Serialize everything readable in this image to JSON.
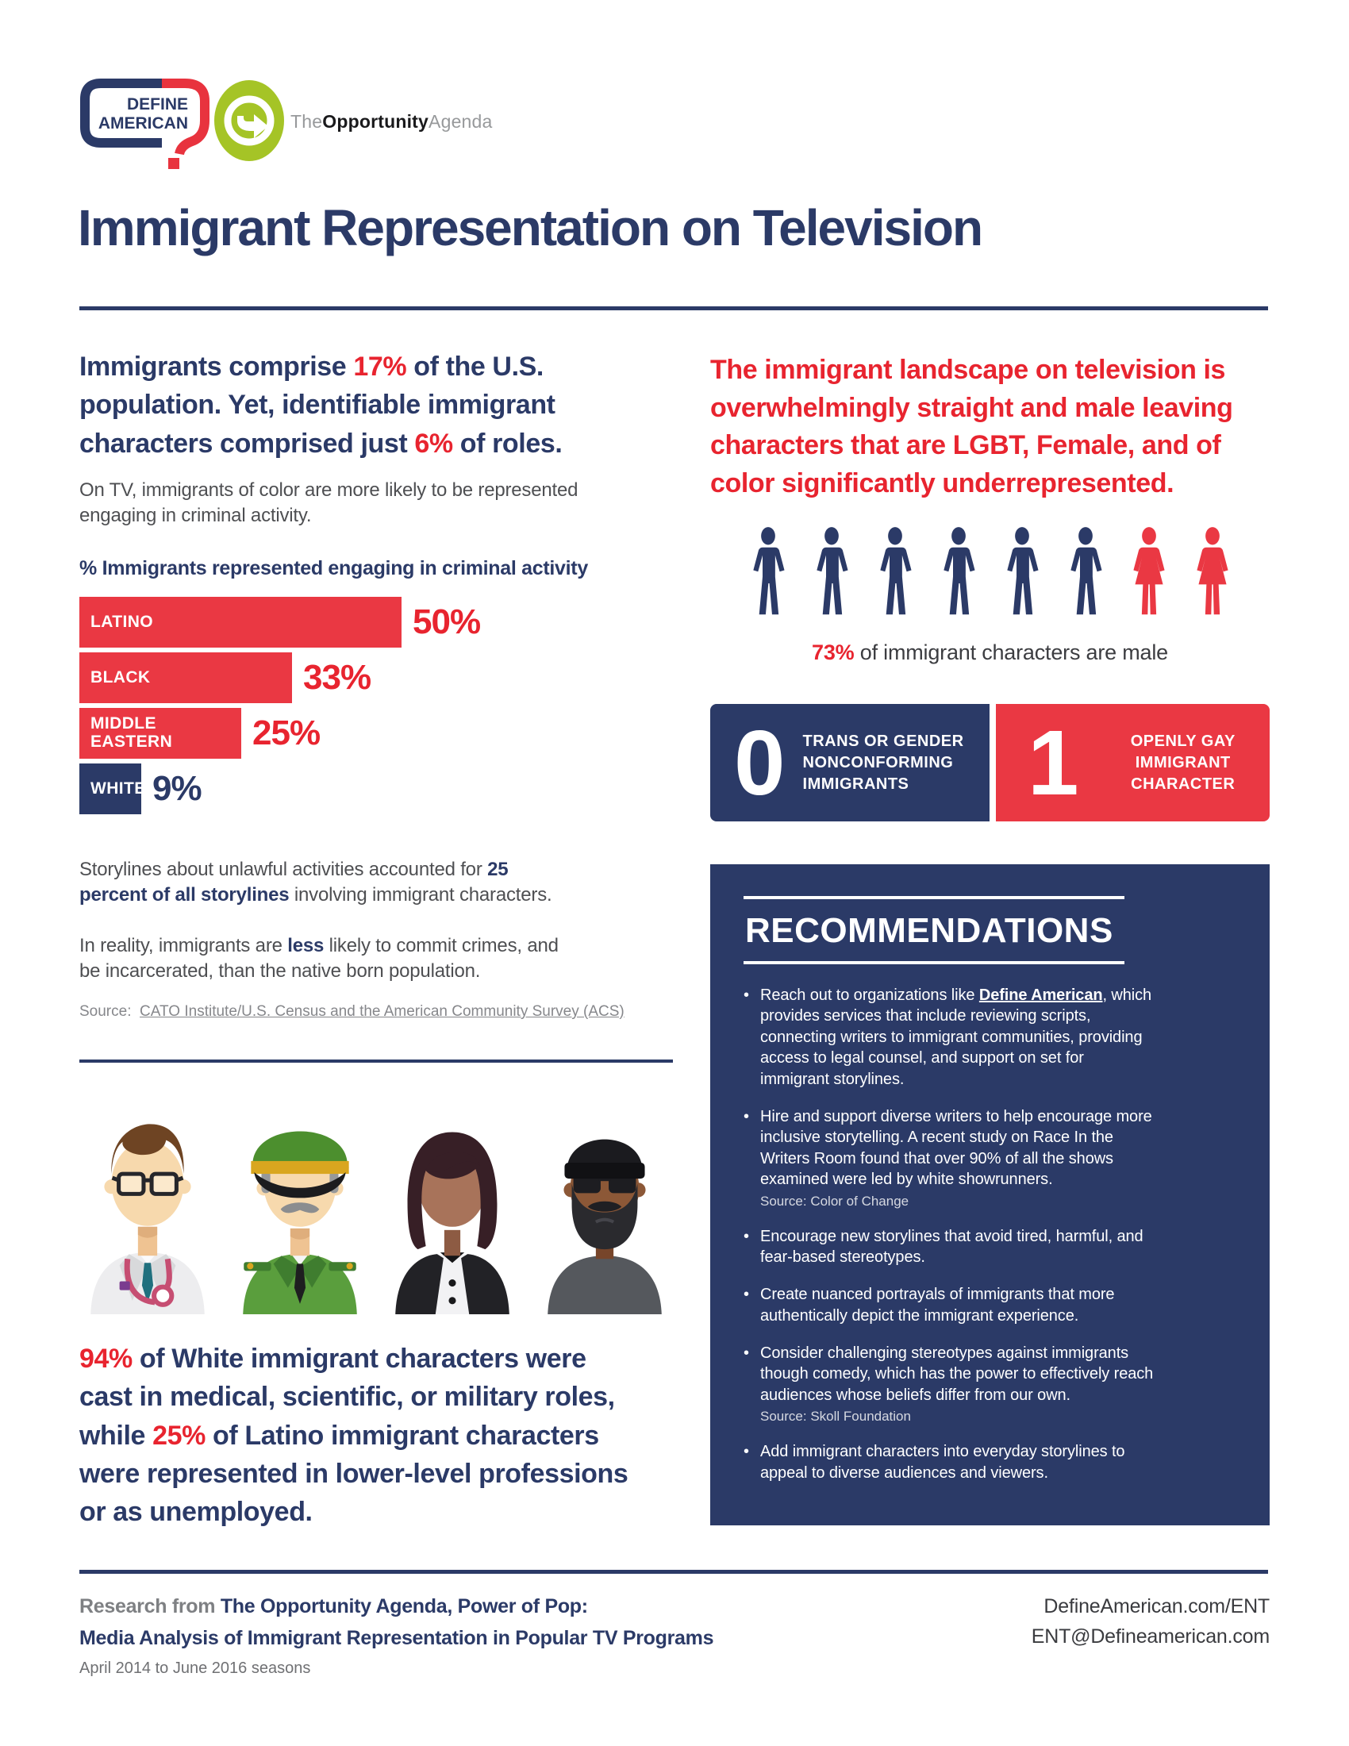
{
  "colors": {
    "navy": "#2b3a67",
    "red_fill": "#ea3843",
    "red_text": "#e8242f",
    "body_gray": "#4e4f52",
    "source_gray": "#86878b",
    "logo_green": "#a5c426"
  },
  "header": {
    "define_american": {
      "line1": "DEFINE",
      "line2": "AMERICAN"
    },
    "opportunity_agenda": {
      "the": "The",
      "opportunity": "Opportunity",
      "agenda": "Agenda"
    }
  },
  "title": "Immigrant Representation on Television",
  "left": {
    "headline": [
      {
        "t": "Immigrants comprise "
      },
      {
        "t": "17%",
        "c": "red"
      },
      {
        "t": " of the U.S.\npopulation. Yet, identifiable immigrant\ncharacters comprised just "
      },
      {
        "t": "6%",
        "c": "red"
      },
      {
        "t": " of roles."
      }
    ],
    "intro": "On TV, immigrants of color are more likely to be represented\nengaging in criminal activity.",
    "storylines": [
      {
        "t": "Storylines about unlawful activities accounted for "
      },
      {
        "t": "25\npercent of all storylines",
        "c": "nb"
      },
      {
        "t": " involving immigrant characters."
      }
    ],
    "reality": [
      {
        "t": "In reality, immigrants are "
      },
      {
        "t": "less",
        "c": "nb"
      },
      {
        "t": " likely to commit crimes, and\nbe incarcerated, than the native born population."
      }
    ],
    "source_label": "Source:",
    "source_link": "CATO Institute/U.S. Census and the American Community Survey (ACS)",
    "professions": [
      {
        "t": "94%",
        "c": "red"
      },
      {
        "t": " of White immigrant characters were\ncast in medical, scientific, or military roles,\nwhile "
      },
      {
        "t": "25%",
        "c": "red"
      },
      {
        "t": " of Latino immigrant characters\nwere represented in lower-level professions\nor as unemployed."
      }
    ],
    "avatar_names": [
      "doctor-avatar",
      "military-officer-avatar",
      "waitress-avatar",
      "bearded-man-avatar"
    ]
  },
  "chart_data": {
    "type": "bar",
    "orientation": "horizontal",
    "title": "% Immigrants represented engaging in criminal activity",
    "categories": [
      "LATINO",
      "BLACK",
      "MIDDLE EASTERN",
      "WHITE"
    ],
    "values": [
      50,
      33,
      25,
      9
    ],
    "value_labels": [
      "50%",
      "33%",
      "25%",
      "9%"
    ],
    "bar_colors": [
      "#ea3843",
      "#ea3843",
      "#ea3843",
      "#2b3a67"
    ],
    "xlim": [
      0,
      100
    ],
    "axis_shown": false,
    "legend": "none"
  },
  "right": {
    "headline": "The immigrant landscape on television is\noverwhelmingly straight and male leaving\ncharacters that are LGBT, Female, and of\ncolor significantly underrepresented.",
    "pictogram": {
      "male_count": 6,
      "female_count": 2
    },
    "caption": [
      {
        "t": "73%",
        "c": "rb"
      },
      {
        "t": " of immigrant characters are male"
      }
    ],
    "stat_boxes": [
      {
        "value": "0",
        "label": "TRANS OR GENDER\nNONCONFORMING\nIMMIGRANTS"
      },
      {
        "value": "1",
        "label": "OPENLY GAY\nIMMIGRANT\nCHARACTER"
      }
    ],
    "recommendations": {
      "title": "RECOMMENDATIONS",
      "bullets": [
        {
          "rich": [
            {
              "t": "Reach out to organizations like "
            },
            {
              "t": "Define American",
              "c": "ul"
            },
            {
              "t": ", which\nprovides services that include reviewing scripts,\nconnecting writers to immigrant communities, providing\naccess to legal counsel, and support on set for\nimmigrant storylines."
            }
          ]
        },
        {
          "rich": [
            {
              "t": "Hire and support diverse writers to help encourage more\ninclusive storytelling. A recent study on Race In the\nWriters Room found that over 90% of all the shows\nexamined were led by white showrunners."
            }
          ],
          "source": "Source: Color of Change"
        },
        {
          "rich": [
            {
              "t": "Encourage new storylines that avoid tired, harmful, and\nfear-based stereotypes."
            }
          ]
        },
        {
          "rich": [
            {
              "t": "Create nuanced portrayals of immigrants that more\nauthentically depict the immigrant experience."
            }
          ]
        },
        {
          "rich": [
            {
              "t": "Consider challenging stereotypes against immigrants\nthough comedy, which has the power to effectively reach\naudiences whose beliefs differ from our own."
            }
          ],
          "source": "Source: Skoll Foundation"
        },
        {
          "rich": [
            {
              "t": "Add immigrant characters into everyday storylines to\nappeal to diverse audiences and viewers."
            }
          ]
        }
      ]
    }
  },
  "footer": {
    "research_line1": [
      {
        "t": "Research from ",
        "c": "gb"
      },
      {
        "t": "The Opportunity Agenda, Power of Pop:",
        "c": "nv"
      }
    ],
    "research_line2": "Media Analysis of Immigrant Representation in Popular TV Programs",
    "seasons": "April 2014 to June 2016 seasons",
    "website": "DefineAmerican.com/ENT",
    "email": "ENT@Defineamerican.com"
  }
}
